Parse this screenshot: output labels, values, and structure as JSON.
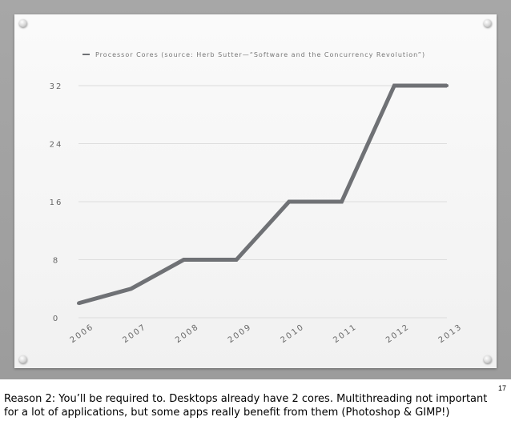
{
  "slide": {
    "number": "17"
  },
  "notes": {
    "text": "Reason 2: You’ll be required to.  Desktops already have 2 cores.  Multithreading not important for a lot of applications, but some apps really benefit from them (Photoshop & GIMP!)"
  },
  "colors": {
    "line": "#6f7175",
    "grid": "#dcdcdc",
    "board": "#f6f6f6",
    "frame": "#a3a3a3"
  },
  "chart_data": {
    "type": "line",
    "title": "",
    "xlabel": "",
    "ylabel": "",
    "x": [
      "2006",
      "2007",
      "2008",
      "2009",
      "2010",
      "2011",
      "2012",
      "2013"
    ],
    "yticks": [
      0,
      8,
      16,
      24,
      32
    ],
    "ylim": [
      0,
      32
    ],
    "grid": true,
    "legend_position": "top",
    "series": [
      {
        "name": "Processor Cores (source: Herb Sutter—“Software and the Concurrency Revolution”)",
        "values": [
          2,
          4,
          8,
          8,
          16,
          16,
          32,
          32
        ]
      }
    ]
  }
}
